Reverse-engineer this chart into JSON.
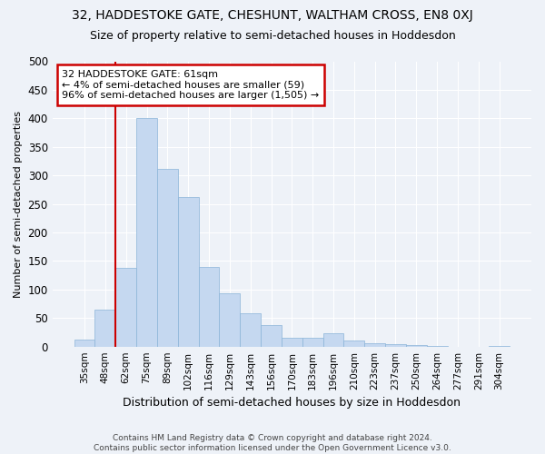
{
  "title_line1": "32, HADDESTOKE GATE, CHESHUNT, WALTHAM CROSS, EN8 0XJ",
  "title_line2": "Size of property relative to semi-detached houses in Hoddesdon",
  "xlabel": "Distribution of semi-detached houses by size in Hoddesdon",
  "ylabel": "Number of semi-detached properties",
  "categories": [
    "35sqm",
    "48sqm",
    "62sqm",
    "75sqm",
    "89sqm",
    "102sqm",
    "116sqm",
    "129sqm",
    "143sqm",
    "156sqm",
    "170sqm",
    "183sqm",
    "196sqm",
    "210sqm",
    "223sqm",
    "237sqm",
    "250sqm",
    "264sqm",
    "277sqm",
    "291sqm",
    "304sqm"
  ],
  "values": [
    12,
    65,
    138,
    401,
    312,
    262,
    140,
    93,
    58,
    38,
    15,
    15,
    24,
    10,
    6,
    4,
    2,
    1,
    0,
    0,
    1
  ],
  "bar_color": "#c5d8f0",
  "bar_edge_color": "#8ab4d8",
  "highlight_line_color": "#cc0000",
  "annotation_title": "32 HADDESTOKE GATE: 61sqm",
  "annotation_line1": "← 4% of semi-detached houses are smaller (59)",
  "annotation_line2": "96% of semi-detached houses are larger (1,505) →",
  "annotation_box_color": "#cc0000",
  "ylim": [
    0,
    500
  ],
  "yticks": [
    0,
    50,
    100,
    150,
    200,
    250,
    300,
    350,
    400,
    450,
    500
  ],
  "footer_line1": "Contains HM Land Registry data © Crown copyright and database right 2024.",
  "footer_line2": "Contains public sector information licensed under the Open Government Licence v3.0.",
  "bg_color": "#eef2f8",
  "plot_bg_color": "#eef2f8",
  "grid_color": "#ffffff",
  "highlight_bar_index": 2
}
